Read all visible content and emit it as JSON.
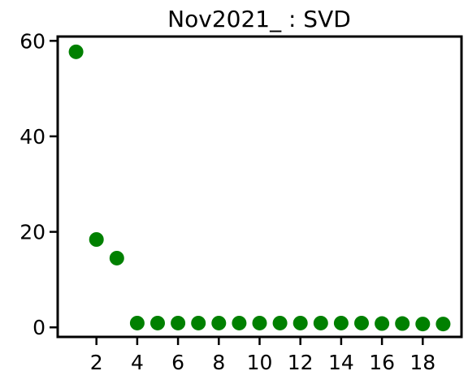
{
  "chart_data": {
    "type": "scatter",
    "title": "Nov2021_ : SVD",
    "xlabel": "",
    "ylabel": "",
    "xlim": [
      0.1,
      19.9
    ],
    "ylim": [
      -2.0,
      60.9
    ],
    "x_ticks": [
      2,
      4,
      6,
      8,
      10,
      12,
      14,
      16,
      18
    ],
    "y_ticks": [
      0,
      20,
      40,
      60
    ],
    "grid": false,
    "marker_color": "#008000",
    "x": [
      1,
      2,
      3,
      4,
      5,
      6,
      7,
      8,
      9,
      10,
      11,
      12,
      13,
      14,
      15,
      16,
      17,
      18,
      19
    ],
    "y": [
      57.7,
      18.4,
      14.5,
      0.9,
      0.9,
      0.9,
      0.9,
      0.9,
      0.9,
      0.9,
      0.9,
      0.9,
      0.9,
      0.9,
      0.9,
      0.8,
      0.8,
      0.7,
      0.7
    ]
  }
}
